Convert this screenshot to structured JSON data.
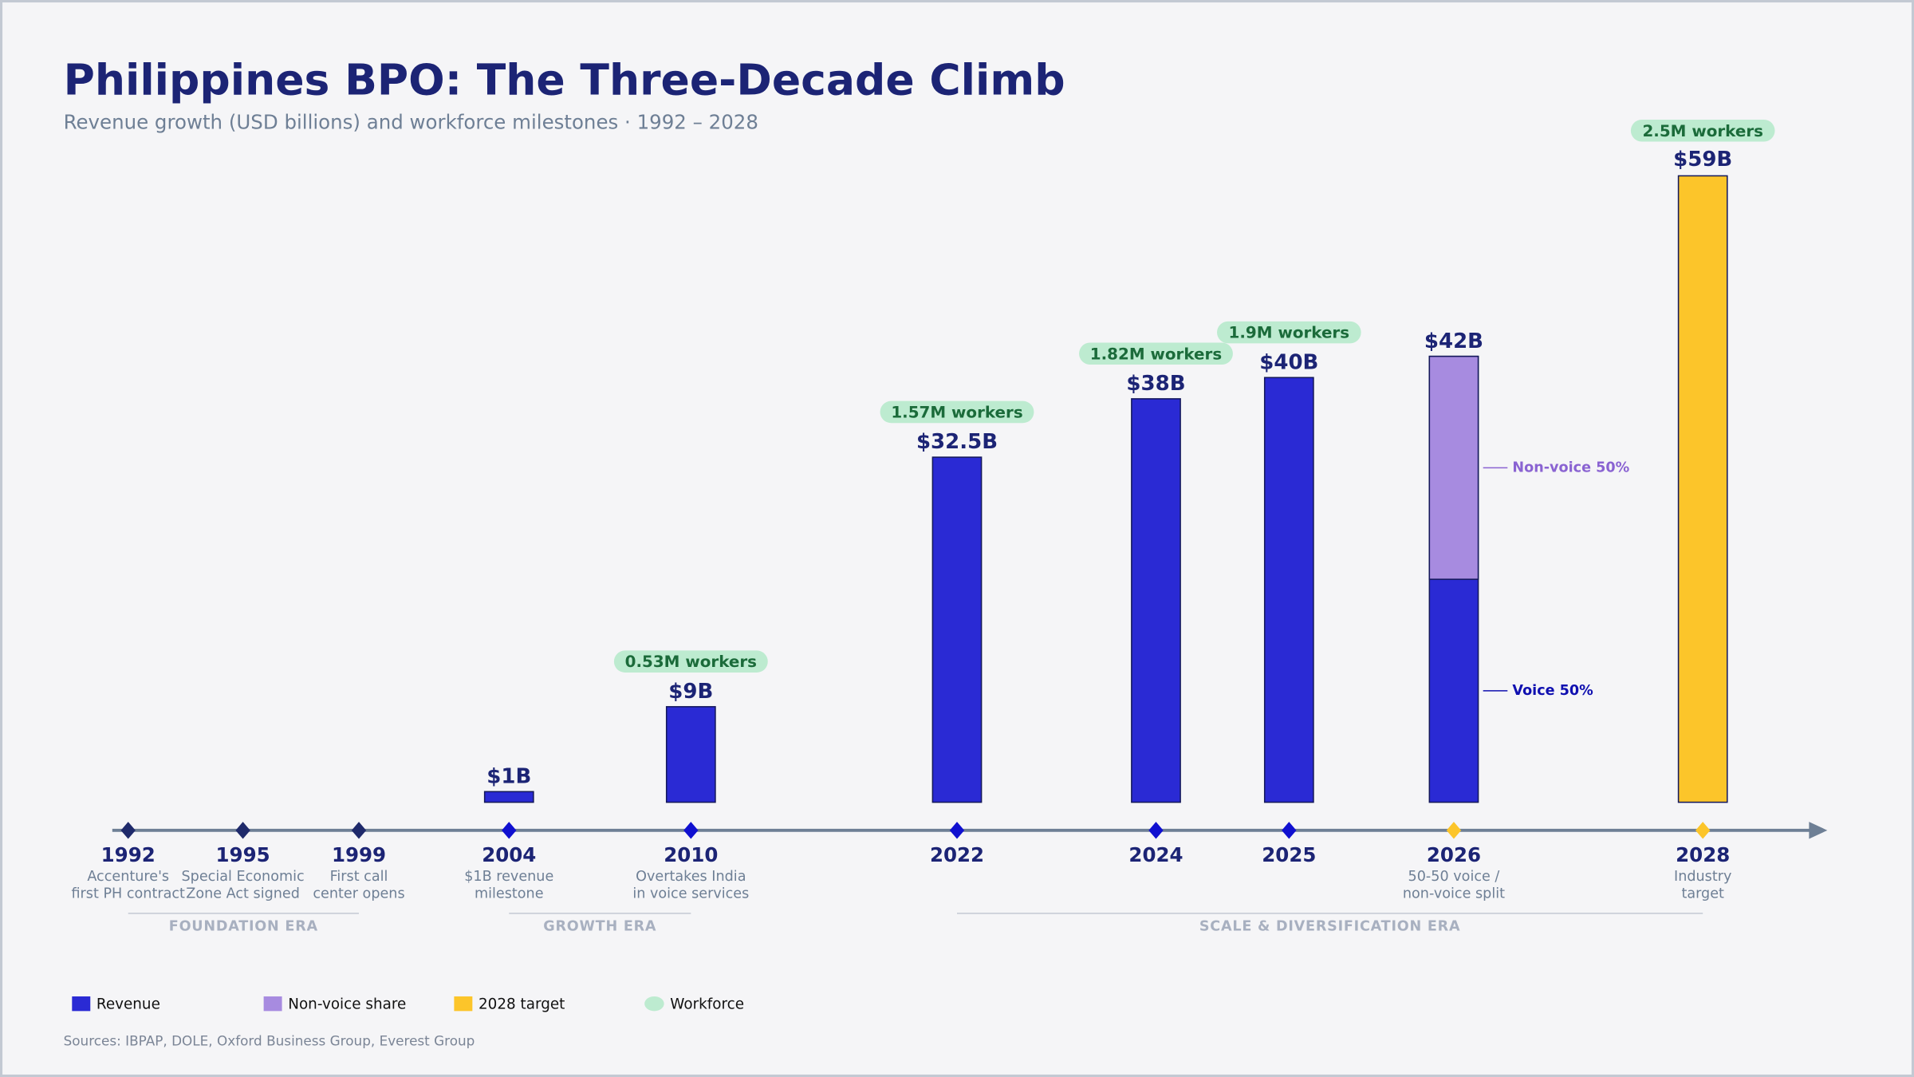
{
  "chart_data": {
    "type": "bar",
    "title": "Philippines BPO: The Three-Decade Climb",
    "subtitle": "Revenue growth (USD billions) and workforce milestones · 1992 – 2028",
    "categories": [
      "1992",
      "1995",
      "1999",
      "2004",
      "2010",
      "2022",
      "2024",
      "2025",
      "2026",
      "2028"
    ],
    "milestones": [
      [
        "Accenture's",
        "first PH contract"
      ],
      [
        "Special Economic",
        "Zone Act signed"
      ],
      [
        "First call",
        "center opens"
      ],
      [
        "$1B revenue",
        "milestone"
      ],
      [
        "Overtakes India",
        "in voice services"
      ],
      null,
      null,
      null,
      [
        "50-50 voice /",
        "non-voice split"
      ],
      [
        "Industry",
        "target"
      ]
    ],
    "ylim": [
      0,
      59
    ],
    "series": [
      {
        "name": "Revenue",
        "color": "#2a2ad4",
        "values": [
          null,
          null,
          null,
          1,
          9,
          32.5,
          38,
          40,
          42,
          null
        ],
        "value_labels": [
          null,
          null,
          null,
          "$1B",
          "$9B",
          "$32.5B",
          "$38B",
          "$40B",
          "$42B",
          null
        ]
      },
      {
        "name": "Non-voice share",
        "color": "#a78be0",
        "values": [
          null,
          null,
          null,
          null,
          null,
          null,
          null,
          null,
          50,
          null
        ],
        "value_labels": [
          null,
          null,
          null,
          null,
          null,
          null,
          null,
          null,
          "Non-voice 50%",
          null
        ]
      },
      {
        "name": "2028 target",
        "color": "#fcc52a",
        "values": [
          null,
          null,
          null,
          null,
          null,
          null,
          null,
          null,
          null,
          59
        ],
        "value_labels": [
          null,
          null,
          null,
          null,
          null,
          null,
          null,
          null,
          null,
          "$59B"
        ]
      },
      {
        "name": "Workforce",
        "color": "#bdebd0",
        "values": [
          null,
          null,
          null,
          null,
          0.53,
          1.57,
          1.82,
          1.9,
          null,
          2.5
        ],
        "value_labels": [
          null,
          null,
          null,
          null,
          "0.53M workers",
          "1.57M workers",
          "1.82M workers",
          "1.9M workers",
          null,
          "2.5M workers"
        ]
      }
    ],
    "voice_label": {
      "value": 50,
      "label": "Voice 50%"
    },
    "eras": [
      {
        "label": "FOUNDATION ERA",
        "start": "1992",
        "end": "1999"
      },
      {
        "label": "GROWTH ERA",
        "start": "2004",
        "end": "2010"
      },
      {
        "label": "SCALE & DIVERSIFICATION ERA",
        "start": "2022",
        "end": "2028"
      }
    ],
    "source": "Sources: IBPAP, DOLE, Oxford Business Group, Everest Group"
  }
}
